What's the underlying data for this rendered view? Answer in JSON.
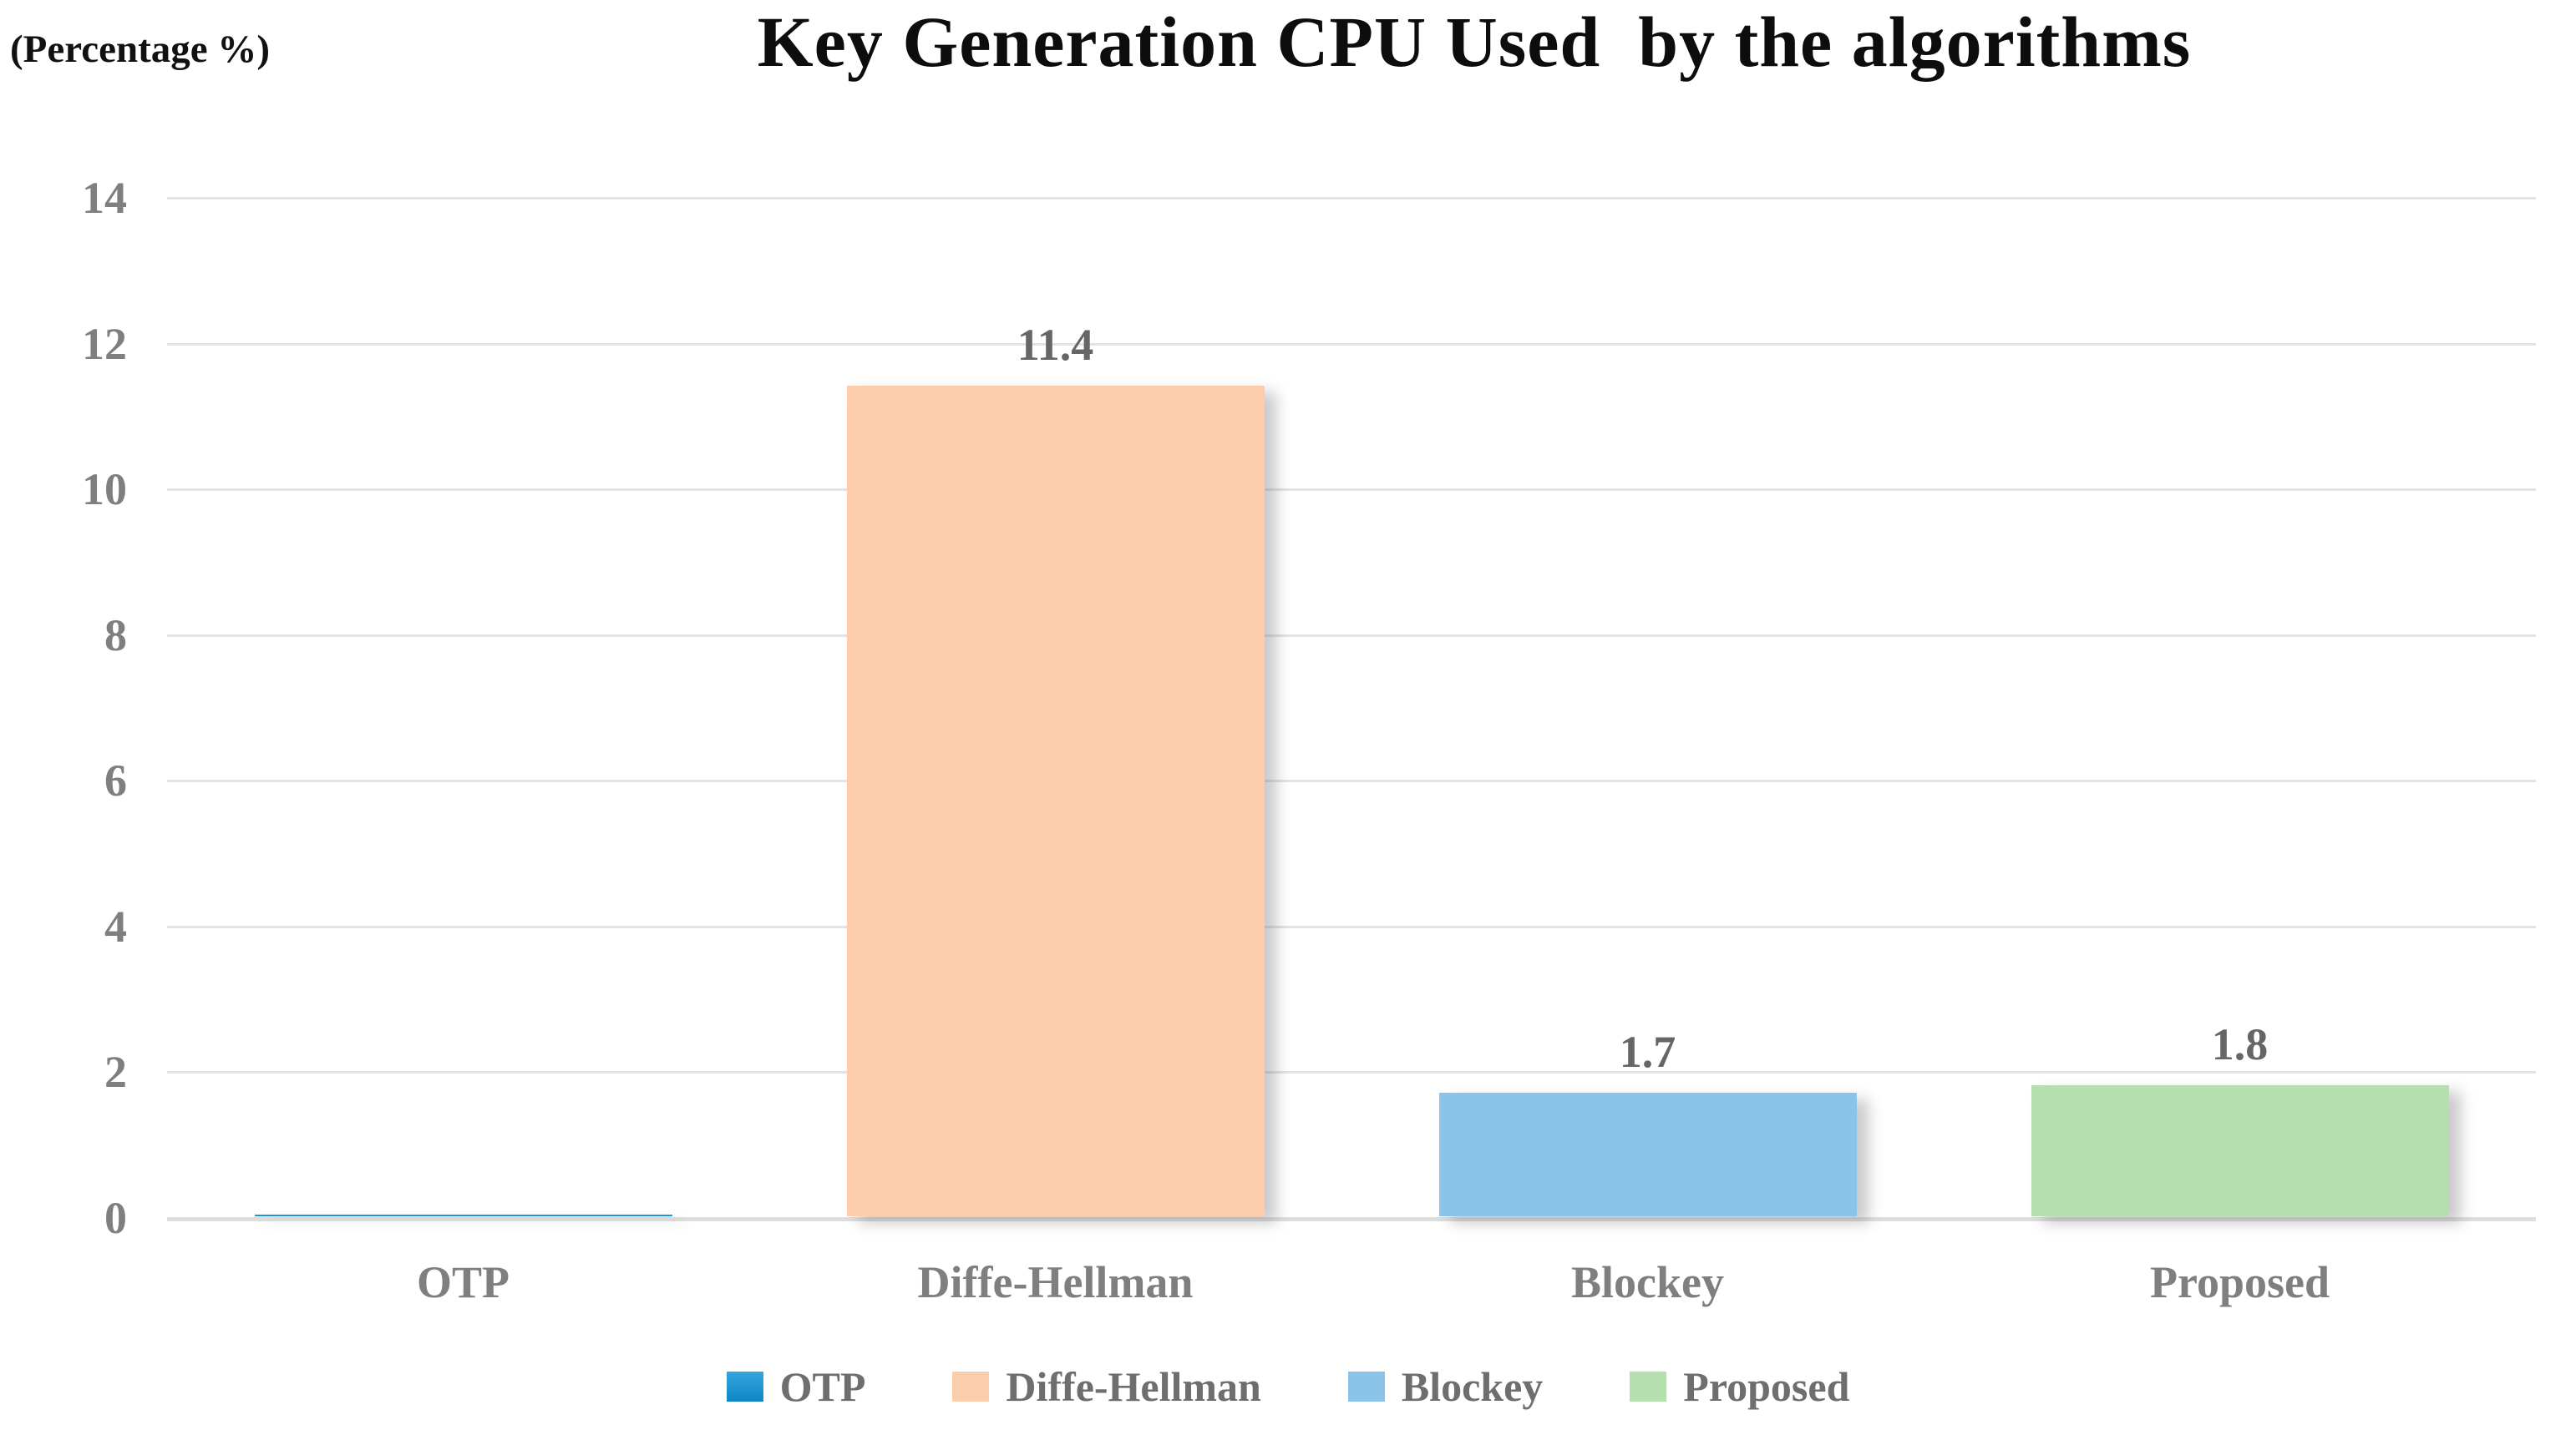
{
  "chart_data": {
    "type": "bar",
    "title": "Key Generation CPU Used  by the algorithms",
    "ylabel": "(Percentage %)",
    "xlabel": "",
    "categories": [
      "OTP",
      "Diffe-Hellman",
      "Blockey",
      "Proposed"
    ],
    "values": [
      0.02,
      11.4,
      1.7,
      1.8
    ],
    "data_labels": [
      "",
      "11.4",
      "1.7",
      "1.8"
    ],
    "bar_colors": [
      "#1698d9",
      "#fccdab",
      "#8cc3e8",
      "#b6dfb0"
    ],
    "ylim": [
      0,
      14
    ],
    "yticks": [
      0,
      2,
      4,
      6,
      8,
      10,
      12,
      14
    ],
    "grid": true,
    "legend": {
      "position": "bottom",
      "entries": [
        {
          "label": "OTP",
          "color": "#1698d9",
          "gradient_top": "#35a7df",
          "gradient_bottom": "#0e86c6"
        },
        {
          "label": "Diffe-Hellman",
          "color": "#fccdab"
        },
        {
          "label": "Blockey",
          "color": "#8cc3e8"
        },
        {
          "label": "Proposed",
          "color": "#b6dfb0"
        }
      ]
    },
    "colors": {
      "title_text": "#0d0d0d",
      "axis_text": "#7f7f7f",
      "data_label_text": "#666666",
      "gridline": "#e3e3e3"
    }
  }
}
